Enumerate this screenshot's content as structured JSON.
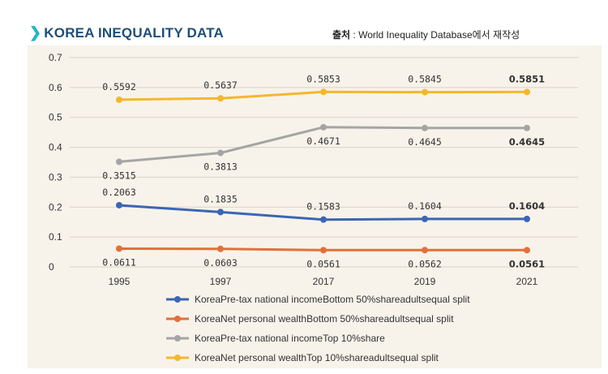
{
  "header": {
    "title": "KOREA INEQUALITY DATA",
    "source_prefix": "출처",
    "source_text": " : World Inequality Database에서 재작성"
  },
  "chart_data": {
    "type": "line",
    "title": "",
    "xlabel": "",
    "ylabel": "",
    "categories": [
      "1995",
      "1997",
      "2017",
      "2019",
      "2021"
    ],
    "ylim": [
      0,
      0.7
    ],
    "yticks": [
      "0",
      "0.1",
      "0.2",
      "0.3",
      "0.4",
      "0.5",
      "0.6",
      "0.7"
    ],
    "grid": true,
    "legend_position": "bottom",
    "series": [
      {
        "name": "KoreaPre-tax national incomeBottom 50%shareadultsequal split",
        "color": "#3a66b5",
        "values": [
          0.2063,
          0.1835,
          0.1583,
          0.1604,
          0.1604
        ],
        "labels": [
          "0.2063",
          "0.1835",
          "0.1583",
          "0.1604",
          "0.1604"
        ],
        "label_pos": "above",
        "last_label_color": "#1fa3d9"
      },
      {
        "name": "KoreaNet personal wealthBottom 50%shareadultsequal split",
        "color": "#e2703a",
        "values": [
          0.0611,
          0.0603,
          0.0561,
          0.0562,
          0.0561
        ],
        "labels": [
          "0.0611",
          "0.0603",
          "0.0561",
          "0.0562",
          "0.0561"
        ],
        "label_pos": "below",
        "last_label_color": "#e02020"
      },
      {
        "name": "KoreaPre-tax national incomeTop 10%share",
        "color": "#a5a5a5",
        "values": [
          0.3515,
          0.3813,
          0.4671,
          0.4645,
          0.4645
        ],
        "labels": [
          "0.3515",
          "0.3813",
          "0.4671",
          "0.4645",
          "0.4645"
        ],
        "label_pos": "below",
        "last_label_color": "#1fa3d9"
      },
      {
        "name": "KoreaNet personal wealthTop 10%shareadultsequal split",
        "color": "#f3b82e",
        "values": [
          0.5592,
          0.5637,
          0.5853,
          0.5845,
          0.5851
        ],
        "labels": [
          "0.5592",
          "0.5637",
          "0.5853",
          "0.5845",
          "0.5851"
        ],
        "label_pos": "above",
        "last_label_color": "#e02020"
      }
    ]
  }
}
